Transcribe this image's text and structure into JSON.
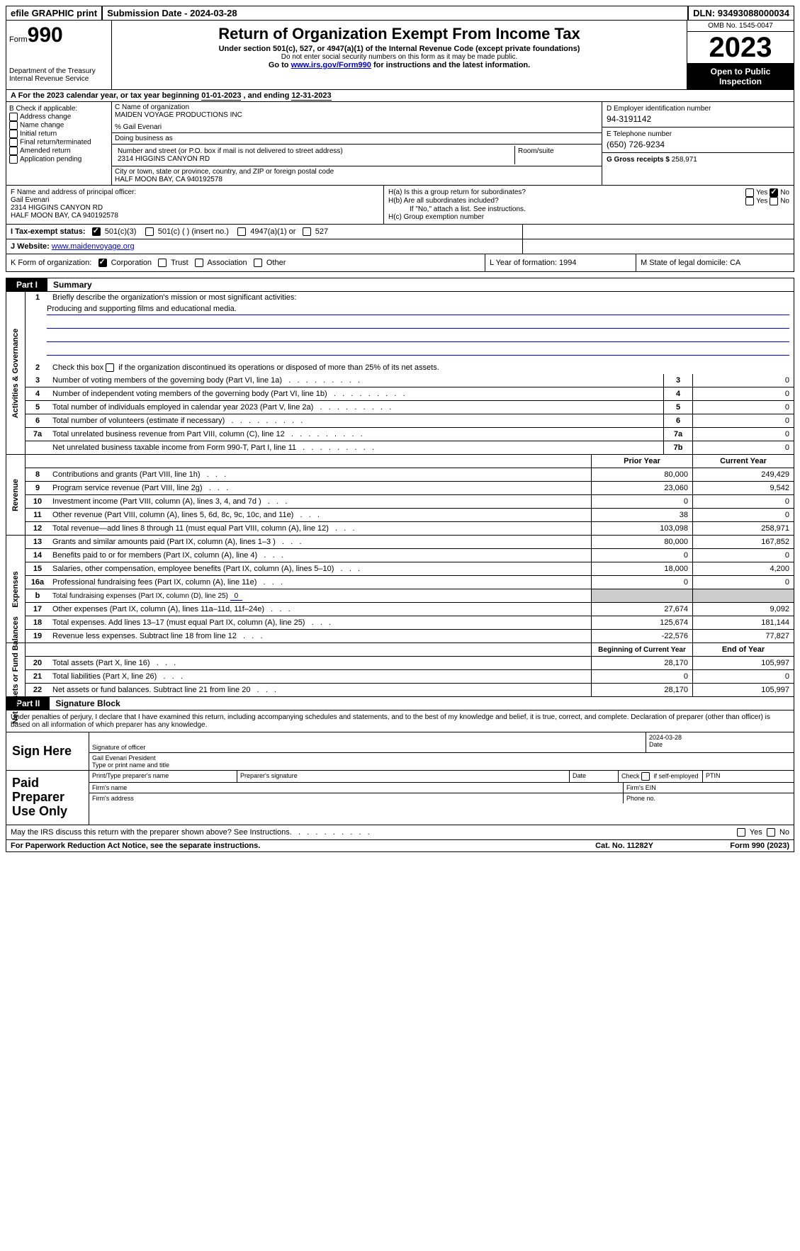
{
  "topbar": {
    "efile": "efile GRAPHIC print",
    "subdate_label": "Submission Date - ",
    "subdate": "2024-03-28",
    "dln_label": "DLN: ",
    "dln": "93493088000034"
  },
  "header": {
    "form_prefix": "Form",
    "form_number": "990",
    "title": "Return of Organization Exempt From Income Tax",
    "subtitle": "Under section 501(c), 527, or 4947(a)(1) of the Internal Revenue Code (except private foundations)",
    "subtitle2": "Do not enter social security numbers on this form as it may be made public.",
    "subtitle3_pre": "Go to ",
    "subtitle3_link": "www.irs.gov/Form990",
    "subtitle3_post": " for instructions and the latest information.",
    "dept": "Department of the Treasury",
    "irs": "Internal Revenue Service",
    "omb": "OMB No. 1545-0047",
    "year": "2023",
    "open": "Open to Public Inspection"
  },
  "rowA": {
    "prefix": "A For the 2023 calendar year, or tax year beginning ",
    "begin": "01-01-2023",
    "mid": "  , and ending ",
    "end": "12-31-2023"
  },
  "boxB": {
    "title": "B Check if applicable:",
    "items": [
      "Address change",
      "Name change",
      "Initial return",
      "Final return/terminated",
      "Amended return",
      "Application pending"
    ]
  },
  "boxC": {
    "name_label": "C Name of organization",
    "name": "MAIDEN VOYAGE PRODUCTIONS INC",
    "care_of": "% Gail Evenari",
    "dba_label": "Doing business as",
    "dba": "",
    "street_label": "Number and street (or P.O. box if mail is not delivered to street address)",
    "street": "2314 HIGGINS CANYON RD",
    "room_label": "Room/suite",
    "room": "",
    "city_label": "City or town, state or province, country, and ZIP or foreign postal code",
    "city": "HALF MOON BAY, CA  940192578"
  },
  "boxD": {
    "label": "D Employer identification number",
    "value": "94-3191142"
  },
  "boxE": {
    "label": "E Telephone number",
    "value": "(650) 726-9234"
  },
  "boxG": {
    "label": "G Gross receipts $ ",
    "value": "258,971"
  },
  "boxF": {
    "label": "F  Name and address of principal officer:",
    "name": "Gail Evenari",
    "street": "2314 HIGGINS CANYON RD",
    "city": "HALF MOON BAY, CA  940192578"
  },
  "boxH": {
    "ha": "H(a)  Is this a group return for subordinates?",
    "hb": "H(b)  Are all subordinates included?",
    "hb_note": "If \"No,\" attach a list. See instructions.",
    "hc": "H(c)  Group exemption number "
  },
  "rowI": {
    "label": "I   Tax-exempt status:",
    "opt1": "501(c)(3)",
    "opt2": "501(c) (  ) (insert no.)",
    "opt3": "4947(a)(1) or",
    "opt4": "527"
  },
  "rowJ": {
    "label": "J   Website: ",
    "value": " www.maidenvoyage.org"
  },
  "rowK": {
    "label": "K Form of organization:",
    "opts": [
      "Corporation",
      "Trust",
      "Association",
      "Other"
    ],
    "L": "L Year of formation: 1994",
    "M": "M State of legal domicile: CA"
  },
  "part1": {
    "tab": "Part I",
    "title": "Summary"
  },
  "sec_ag": {
    "label": "Activities & Governance",
    "l1": "Briefly describe the organization's mission or most significant activities:",
    "l1v": "Producing and supporting films and educational media.",
    "l2": "Check this box        if the organization discontinued its operations or disposed of more than 25% of its net assets.",
    "lines": [
      {
        "n": "3",
        "d": "Number of voting members of the governing body (Part VI, line 1a)",
        "b": "3",
        "v": "0"
      },
      {
        "n": "4",
        "d": "Number of independent voting members of the governing body (Part VI, line 1b)",
        "b": "4",
        "v": "0"
      },
      {
        "n": "5",
        "d": "Total number of individuals employed in calendar year 2023 (Part V, line 2a)",
        "b": "5",
        "v": "0"
      },
      {
        "n": "6",
        "d": "Total number of volunteers (estimate if necessary)",
        "b": "6",
        "v": "0"
      },
      {
        "n": "7a",
        "d": "Total unrelated business revenue from Part VIII, column (C), line 12",
        "b": "7a",
        "v": "0"
      },
      {
        "n": "",
        "d": "Net unrelated business taxable income from Form 990-T, Part I, line 11",
        "b": "7b",
        "v": "0"
      }
    ]
  },
  "sec_rev": {
    "label": "Revenue",
    "hdr_prior": "Prior Year",
    "hdr_curr": "Current Year",
    "lines": [
      {
        "n": "8",
        "d": "Contributions and grants (Part VIII, line 1h)",
        "p": "80,000",
        "c": "249,429"
      },
      {
        "n": "9",
        "d": "Program service revenue (Part VIII, line 2g)",
        "p": "23,060",
        "c": "9,542"
      },
      {
        "n": "10",
        "d": "Investment income (Part VIII, column (A), lines 3, 4, and 7d )",
        "p": "0",
        "c": "0"
      },
      {
        "n": "11",
        "d": "Other revenue (Part VIII, column (A), lines 5, 6d, 8c, 9c, 10c, and 11e)",
        "p": "38",
        "c": "0"
      },
      {
        "n": "12",
        "d": "Total revenue—add lines 8 through 11 (must equal Part VIII, column (A), line 12)",
        "p": "103,098",
        "c": "258,971"
      }
    ]
  },
  "sec_exp": {
    "label": "Expenses",
    "lines": [
      {
        "n": "13",
        "d": "Grants and similar amounts paid (Part IX, column (A), lines 1–3 )",
        "p": "80,000",
        "c": "167,852"
      },
      {
        "n": "14",
        "d": "Benefits paid to or for members (Part IX, column (A), line 4)",
        "p": "0",
        "c": "0"
      },
      {
        "n": "15",
        "d": "Salaries, other compensation, employee benefits (Part IX, column (A), lines 5–10)",
        "p": "18,000",
        "c": "4,200"
      },
      {
        "n": "16a",
        "d": "Professional fundraising fees (Part IX, column (A), line 11e)",
        "p": "0",
        "c": "0"
      },
      {
        "n": "b",
        "d": "Total fundraising expenses (Part IX, column (D), line 25) ",
        "fval": "0",
        "shaded": true
      },
      {
        "n": "17",
        "d": "Other expenses (Part IX, column (A), lines 11a–11d, 11f–24e)",
        "p": "27,674",
        "c": "9,092"
      },
      {
        "n": "18",
        "d": "Total expenses. Add lines 13–17 (must equal Part IX, column (A), line 25)",
        "p": "125,674",
        "c": "181,144"
      },
      {
        "n": "19",
        "d": "Revenue less expenses. Subtract line 18 from line 12",
        "p": "-22,576",
        "c": "77,827"
      }
    ]
  },
  "sec_na": {
    "label": "Net Assets or Fund Balances",
    "hdr_begin": "Beginning of Current Year",
    "hdr_end": "End of Year",
    "lines": [
      {
        "n": "20",
        "d": "Total assets (Part X, line 16)",
        "p": "28,170",
        "c": "105,997"
      },
      {
        "n": "21",
        "d": "Total liabilities (Part X, line 26)",
        "p": "0",
        "c": "0"
      },
      {
        "n": "22",
        "d": "Net assets or fund balances. Subtract line 21 from line 20",
        "p": "28,170",
        "c": "105,997"
      }
    ]
  },
  "part2": {
    "tab": "Part II",
    "title": "Signature Block"
  },
  "sig": {
    "perjury": "Under penalties of perjury, I declare that I have examined this return, including accompanying schedules and statements, and to the best of my knowledge and belief, it is true, correct, and complete. Declaration of preparer (other than officer) is based on all information of which preparer has any knowledge.",
    "sign_here": "Sign Here",
    "sig_officer": "Signature of officer",
    "sig_name": "Gail Evenari President",
    "sig_type": "Type or print name and title",
    "sig_date_label": "Date",
    "sig_date": "2024-03-28",
    "paid": "Paid Preparer Use Only",
    "prep_name": "Print/Type preparer's name",
    "prep_sig": "Preparer's signature",
    "prep_date": "Date",
    "prep_check": "Check         if self-employed",
    "ptin": "PTIN",
    "firm_name": "Firm's name  ",
    "firm_ein": "Firm's EIN  ",
    "firm_addr": "Firm's address  ",
    "phone": "Phone no."
  },
  "discuss": "May the IRS discuss this return with the preparer shown above? See Instructions.",
  "yes": "Yes",
  "no": "No",
  "footer": {
    "left": "For Paperwork Reduction Act Notice, see the separate instructions.",
    "mid": "Cat. No. 11282Y",
    "right_pre": "Form ",
    "right_form": "990",
    "right_post": " (2023)"
  }
}
